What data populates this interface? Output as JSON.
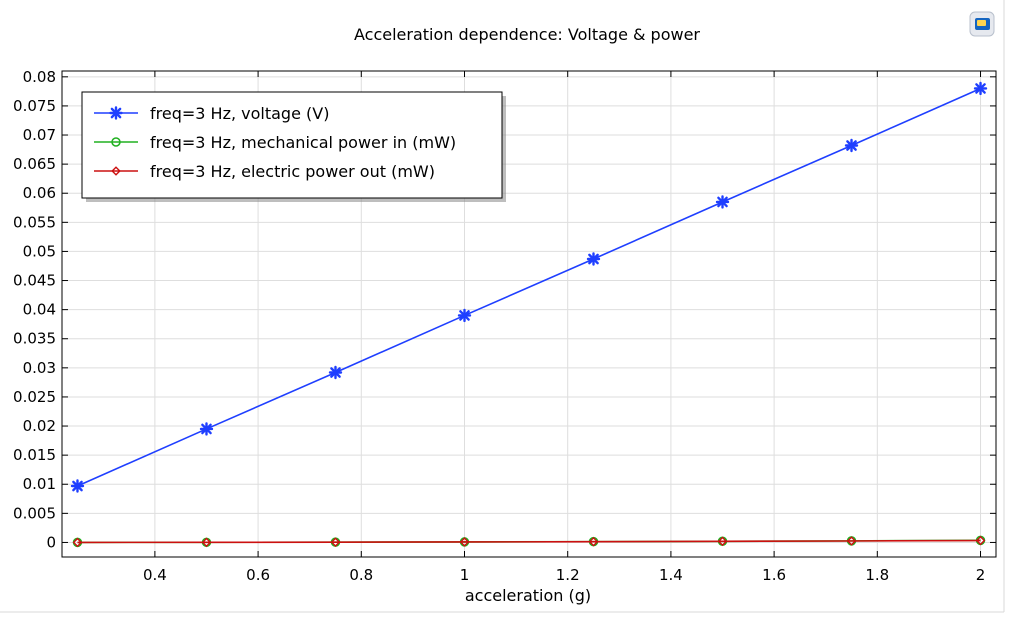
{
  "chart_data": {
    "type": "line",
    "title": "Acceleration dependence: Voltage & power",
    "xlabel": "acceleration (g)",
    "ylabel": "",
    "xlim": [
      0.22,
      2.03
    ],
    "ylim": [
      -0.0025,
      0.081
    ],
    "x_ticks": [
      "0.4",
      "0.6",
      "0.8",
      "1",
      "1.2",
      "1.4",
      "1.6",
      "1.8",
      "2"
    ],
    "y_ticks": [
      "0",
      "0.005",
      "0.01",
      "0.015",
      "0.02",
      "0.025",
      "0.03",
      "0.035",
      "0.04",
      "0.045",
      "0.05",
      "0.055",
      "0.06",
      "0.065",
      "0.07",
      "0.075",
      "0.08"
    ],
    "grid": true,
    "legend_position": "top-left",
    "x": [
      0.25,
      0.5,
      0.75,
      1.0,
      1.25,
      1.5,
      1.75,
      2.0
    ],
    "series": [
      {
        "name": "freq=3 Hz, voltage (V)",
        "color": "#1f3fff",
        "marker": "asterisk",
        "values": [
          0.0097,
          0.0195,
          0.0292,
          0.039,
          0.0487,
          0.0585,
          0.0682,
          0.078
        ]
      },
      {
        "name": "freq=3 Hz, mechanical power in (mW)",
        "color": "#20b020",
        "marker": "circle",
        "values": [
          6e-06,
          2.3e-05,
          5e-05,
          9e-05,
          0.00014,
          0.0002,
          0.00027,
          0.00036
        ]
      },
      {
        "name": "freq=3 Hz, electric power out (mW)",
        "color": "#cc1010",
        "marker": "diamond",
        "values": [
          5e-06,
          2.1e-05,
          4.7e-05,
          8.4e-05,
          0.00013,
          0.00019,
          0.00025,
          0.00033
        ]
      }
    ]
  },
  "app": {
    "logo_icon": "comsol-logo-icon"
  }
}
